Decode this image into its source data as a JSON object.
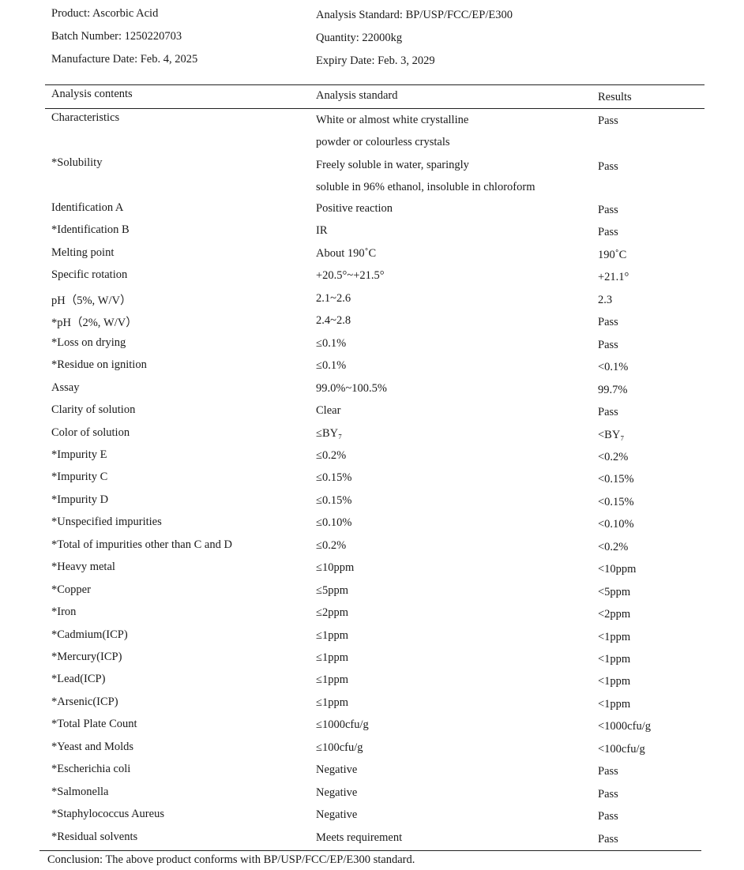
{
  "header": {
    "product": "Product: Ascorbic Acid",
    "batch": "Batch Number: 1250220703",
    "manufacture": "Manufacture Date: Feb. 4, 2025",
    "standard": "Analysis Standard: BP/USP/FCC/EP/E300",
    "quantity": "Quantity: 22000kg",
    "expiry": "Expiry Date: Feb. 3, 2029"
  },
  "table": {
    "columns": [
      "Analysis contents",
      "Analysis standard",
      "Results"
    ],
    "multiline_rows": [
      {
        "item": "Characteristics",
        "standard": [
          "White or almost white crystalline",
          "powder or colourless crystals"
        ],
        "result": "Pass"
      },
      {
        "item": "*Solubility",
        "standard": [
          "Freely soluble in water,  sparingly",
          "soluble in 96% ethanol,  insoluble in chloroform"
        ],
        "result": "Pass"
      }
    ],
    "rows": [
      {
        "item": "Identification A",
        "standard": "Positive reaction",
        "result": "Pass"
      },
      {
        "item": "*Identification B",
        "standard": "IR",
        "result": "Pass"
      },
      {
        "item": "Melting point",
        "standard": "About 190˚C",
        "result": "190˚C"
      },
      {
        "item": "Specific rotation",
        "standard": "+20.5°~+21.5°",
        "result": "+21.1°"
      },
      {
        "item": "pH（5%,  W/V）",
        "standard": "2.1~2.6",
        "result": "2.3"
      },
      {
        "item": "*pH（2%,  W/V）",
        "standard": "2.4~2.8",
        "result": "Pass"
      },
      {
        "item": "*Loss on drying",
        "standard": "≤0.1%",
        "result": "Pass"
      },
      {
        "item": "*Residue on ignition",
        "standard": "≤0.1%",
        "result": "<0.1%"
      },
      {
        "item": "Assay",
        "standard": "99.0%~100.5%",
        "result": "99.7%"
      },
      {
        "item": "Clarity of solution",
        "standard": "Clear",
        "result": "Pass"
      },
      {
        "item": "Color of solution",
        "standard": "≤BY₇",
        "result": "<BY₇"
      },
      {
        "item": "*Impurity E",
        "standard": "≤0.2%",
        "result": "<0.2%"
      },
      {
        "item": "*Impurity C",
        "standard": "≤0.15%",
        "result": "<0.15%"
      },
      {
        "item": "*Impurity D",
        "standard": "≤0.15%",
        "result": "<0.15%"
      },
      {
        "item": "*Unspecified impurities",
        "standard": "≤0.10%",
        "result": "<0.10%"
      },
      {
        "item": "*Total of impurities other than C and D",
        "standard": "≤0.2%",
        "result": "<0.2%"
      },
      {
        "item": "*Heavy metal",
        "standard": "≤10ppm",
        "result": "<10ppm"
      },
      {
        "item": "*Copper",
        "standard": "≤5ppm",
        "result": "<5ppm"
      },
      {
        "item": "*Iron",
        "standard": "≤2ppm",
        "result": "<2ppm"
      },
      {
        "item": "*Cadmium(ICP)",
        "standard": "≤1ppm",
        "result": "<1ppm"
      },
      {
        "item": "*Mercury(ICP)",
        "standard": "≤1ppm",
        "result": "<1ppm"
      },
      {
        "item": "*Lead(ICP)",
        "standard": "≤1ppm",
        "result": "<1ppm"
      },
      {
        "item": "*Arsenic(ICP)",
        "standard": "≤1ppm",
        "result": "<1ppm"
      },
      {
        "item": "*Total Plate Count",
        "standard": "≤1000cfu/g",
        "result": "<1000cfu/g"
      },
      {
        "item": "*Yeast and Molds",
        "standard": "≤100cfu/g",
        "result": "<100cfu/g"
      },
      {
        "item": "*Escherichia coli",
        "standard": "Negative",
        "result": "Pass"
      },
      {
        "item": "*Salmonella",
        "standard": "Negative",
        "result": "Pass"
      },
      {
        "item": "*Staphylococcus Aureus",
        "standard": "Negative",
        "result": "Pass"
      },
      {
        "item": "*Residual solvents",
        "standard": "Meets requirement",
        "result": "Pass"
      }
    ]
  },
  "conclusion": "Conclusion: The above product conforms with BP/USP/FCC/EP/E300 standard."
}
